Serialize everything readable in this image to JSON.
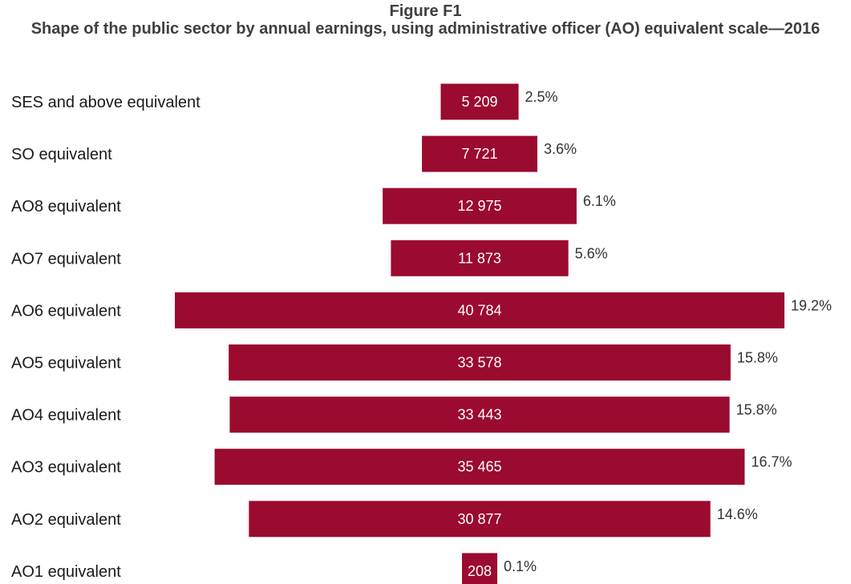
{
  "figure_label": "Figure F1",
  "chart_data": {
    "type": "bar",
    "title": "Shape of the public sector by annual earnings, using administrative officer (AO) equivalent scale—2016",
    "xlabel": "",
    "ylabel": "",
    "orientation": "horizontal-centered",
    "bar_color": "#9b0a2f",
    "categories": [
      "SES and above equivalent",
      "SO equivalent",
      "AO8 equivalent",
      "AO7 equivalent",
      "AO6 equivalent",
      "AO5 equivalent",
      "AO4 equivalent",
      "AO3 equivalent",
      "AO2 equivalent",
      "AO1 equivalent"
    ],
    "values": [
      5209,
      7721,
      12975,
      11873,
      40784,
      33578,
      33443,
      35465,
      30877,
      208
    ],
    "value_labels": [
      "5 209",
      "7 721",
      "12 975",
      "11 873",
      "40 784",
      "33 578",
      "33 443",
      "35 465",
      "30 877",
      "208"
    ],
    "percent_labels": [
      "2.5%",
      "3.6%",
      "6.1%",
      "5.6%",
      "19.2%",
      "15.8%",
      "15.8%",
      "16.7%",
      "14.6%",
      "0.1%"
    ],
    "grid": false,
    "legend": "none"
  }
}
